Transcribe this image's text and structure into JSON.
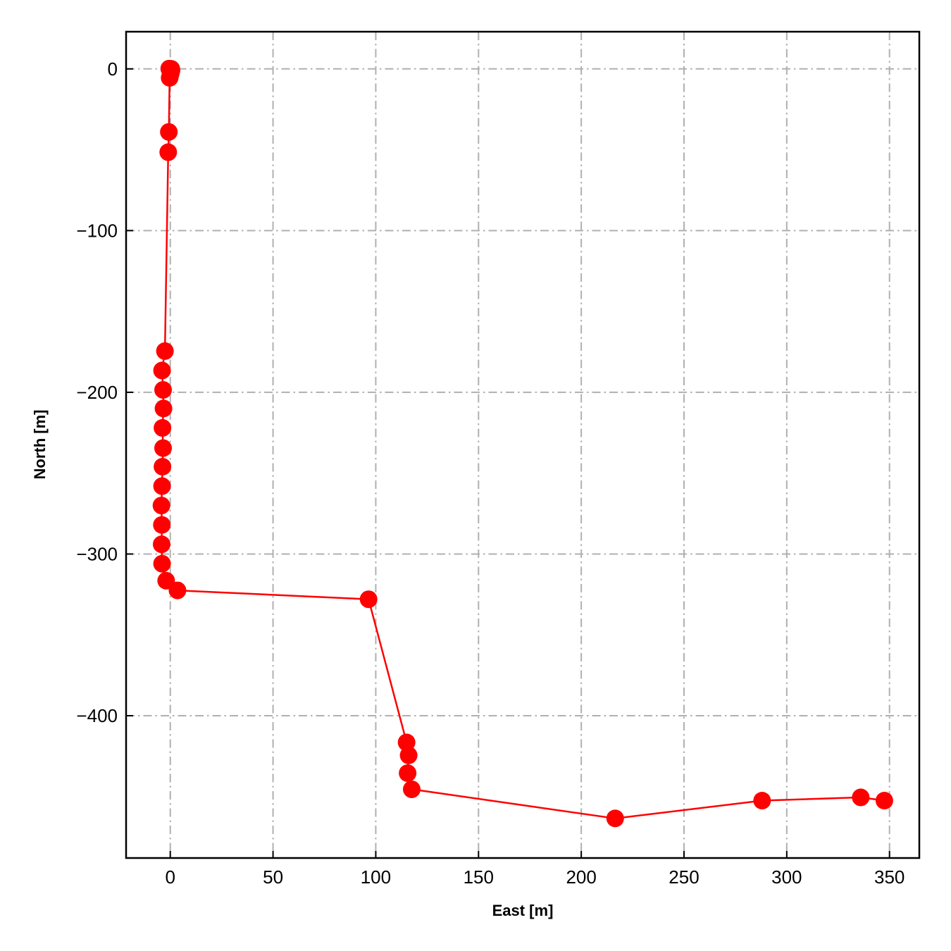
{
  "chart_data": {
    "type": "scatter",
    "title": "",
    "xlabel": "East [m]",
    "ylabel": "North [m]",
    "xlim": [
      -21.5,
      364.5
    ],
    "ylim": [
      -488,
      23
    ],
    "xticks": [
      0,
      50,
      100,
      150,
      200,
      250,
      300,
      350
    ],
    "yticks": [
      0,
      -100,
      -200,
      -300,
      -400
    ],
    "xtick_labels": [
      "0",
      "50",
      "100",
      "150",
      "200",
      "250",
      "300",
      "350"
    ],
    "ytick_labels": [
      "0",
      "−100",
      "−200",
      "−300",
      "−400"
    ],
    "grid": true,
    "grid_style": "dash-dot",
    "legend": "none",
    "series": [
      {
        "color": "#ff0000",
        "marker": "circle",
        "line": true,
        "x": [
          0.5,
          0.6,
          0.5,
          -0.5,
          0.0,
          0.5,
          0.2,
          -0.3,
          -0.7,
          -1.0,
          -2.6,
          -4.0,
          -3.5,
          -3.3,
          -3.8,
          -3.5,
          -3.8,
          -4.0,
          -4.3,
          -4.1,
          -4.2,
          -4.0,
          -2.0,
          3.5,
          96.5,
          115.0,
          116.0,
          115.5,
          117.5,
          216.5,
          288.0,
          336.0,
          347.5
        ],
        "y": [
          0.0,
          -0.8,
          -1.2,
          0.2,
          -1.5,
          -0.3,
          -3.0,
          -5.5,
          -39.0,
          -51.5,
          -174.5,
          -186.5,
          -198.5,
          -210.0,
          -222.0,
          -234.5,
          -246.0,
          -258.0,
          -270.0,
          -282.0,
          -294.0,
          -306.0,
          -316.5,
          -322.5,
          -328.0,
          -416.5,
          -424.5,
          -435.5,
          -445.5,
          -463.5,
          -452.5,
          -450.5,
          -452.5
        ]
      }
    ]
  }
}
